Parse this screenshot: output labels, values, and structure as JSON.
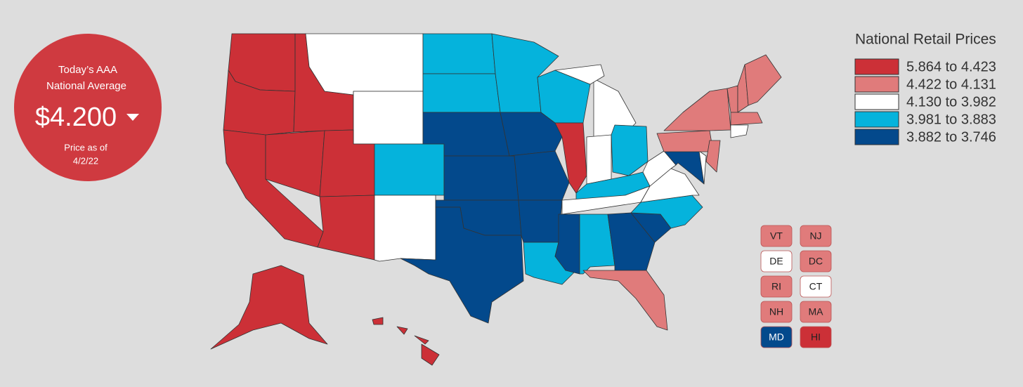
{
  "badge": {
    "line1": "Today’s AAA",
    "line2": "National Average",
    "price": "$4.200",
    "as_of": "Price as of",
    "date": "4/2/22"
  },
  "legend": {
    "title": "National Retail Prices",
    "items": [
      {
        "label": "5.864 to 4.423",
        "color": "#cc3037"
      },
      {
        "label": "4.422 to 4.131",
        "color": "#e07b7b"
      },
      {
        "label": "4.130 to 3.982",
        "color": "#ffffff"
      },
      {
        "label": "3.981 to 3.883",
        "color": "#05b3dc"
      },
      {
        "label": "3.882 to 3.746",
        "color": "#03498c"
      }
    ]
  },
  "small_states": [
    {
      "label": "VT",
      "color": "#e07b7b"
    },
    {
      "label": "NJ",
      "color": "#e07b7b"
    },
    {
      "label": "DE",
      "color": "#ffffff"
    },
    {
      "label": "DC",
      "color": "#e07b7b"
    },
    {
      "label": "RI",
      "color": "#e07b7b"
    },
    {
      "label": "CT",
      "color": "#ffffff"
    },
    {
      "label": "NH",
      "color": "#e07b7b"
    },
    {
      "label": "MA",
      "color": "#e07b7b"
    },
    {
      "label": "MD",
      "color": "#03498c"
    },
    {
      "label": "HI",
      "color": "#cc3037"
    }
  ]
}
